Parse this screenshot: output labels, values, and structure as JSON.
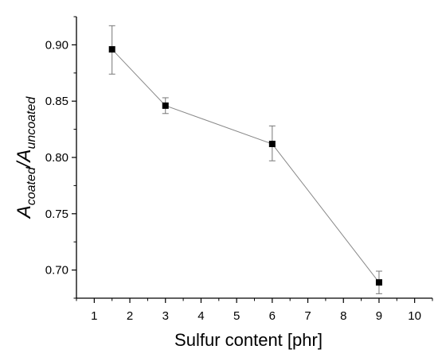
{
  "chart_data": {
    "type": "line",
    "xlabel": "Sulfur content [phr]",
    "ylabel": {
      "base": "A",
      "sub1": "coated",
      "sep": "/",
      "base2": "A",
      "sub2": "uncoated"
    },
    "xlim": [
      0.5,
      10.5
    ],
    "ylim": [
      0.675,
      0.925
    ],
    "x_ticks": [
      1,
      2,
      3,
      4,
      5,
      6,
      7,
      8,
      9,
      10
    ],
    "x_tick_labels": [
      "1",
      "2",
      "3",
      "4",
      "5",
      "6",
      "7",
      "8",
      "9",
      "10"
    ],
    "y_ticks": [
      0.7,
      0.75,
      0.8,
      0.85,
      0.9
    ],
    "y_tick_labels": [
      "0.70",
      "0.75",
      "0.80",
      "0.85",
      "0.90"
    ],
    "grid": false,
    "series": [
      {
        "marker": "square",
        "color": "#000000",
        "line_color": "#888888",
        "points": [
          {
            "x": 1.5,
            "y": 0.896,
            "err_low": 0.874,
            "err_high": 0.917
          },
          {
            "x": 3.0,
            "y": 0.846,
            "err_low": 0.839,
            "err_high": 0.853
          },
          {
            "x": 6.0,
            "y": 0.812,
            "err_low": 0.797,
            "err_high": 0.828
          },
          {
            "x": 9.0,
            "y": 0.689,
            "err_low": 0.679,
            "err_high": 0.699
          }
        ]
      }
    ]
  }
}
